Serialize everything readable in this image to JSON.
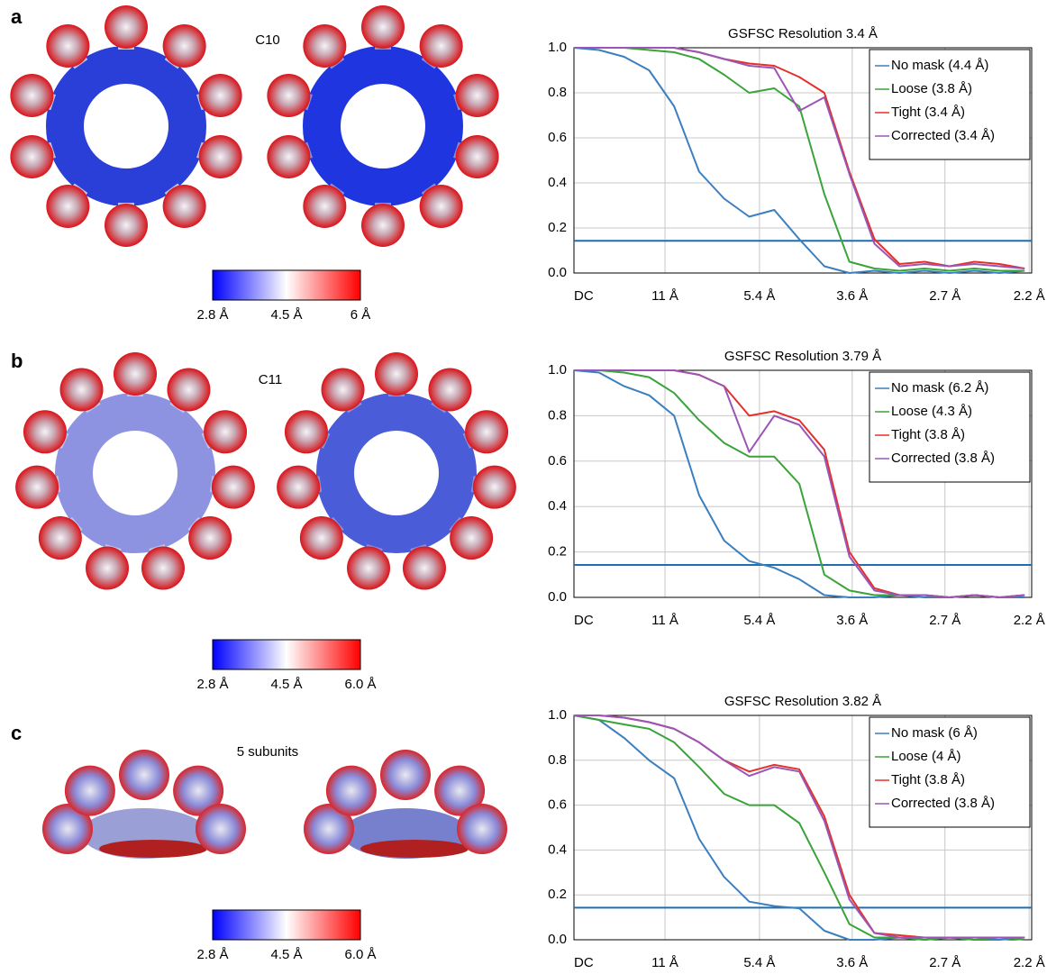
{
  "panels": [
    {
      "letter": "a",
      "label": "C10",
      "colorbar": [
        "2.8 Å",
        "4.5 Å",
        "6 Å"
      ]
    },
    {
      "letter": "b",
      "label": "C11",
      "colorbar": [
        "2.8 Å",
        "4.5 Å",
        "6.0 Å"
      ]
    },
    {
      "letter": "c",
      "label": "5 subunits",
      "colorbar": [
        "2.8 Å",
        "4.5 Å",
        "6.0 Å"
      ]
    }
  ],
  "chart_data": [
    {
      "type": "line",
      "title": "GSFSC Resolution 3.4 Å",
      "x": [
        0,
        0.025,
        0.05,
        0.075,
        0.1,
        0.125,
        0.15,
        0.175,
        0.2,
        0.225,
        0.25,
        0.275,
        0.3,
        0.325,
        0.35,
        0.375,
        0.4,
        0.425,
        0.45
      ],
      "series": [
        {
          "name": "No mask (4.4 Å)",
          "color": "#3b7fc0",
          "values": [
            1.0,
            0.99,
            0.96,
            0.9,
            0.74,
            0.45,
            0.33,
            0.25,
            0.28,
            0.15,
            0.03,
            0.0,
            0.01,
            0.0,
            0.01,
            0.0,
            0.01,
            0.0,
            0.01
          ]
        },
        {
          "name": "Loose (3.8 Å)",
          "color": "#3aa33a",
          "values": [
            1.0,
            1.0,
            1.0,
            0.99,
            0.98,
            0.95,
            0.88,
            0.8,
            0.82,
            0.74,
            0.35,
            0.05,
            0.02,
            0.01,
            0.02,
            0.01,
            0.02,
            0.01,
            0.01
          ]
        },
        {
          "name": "Tight (3.4 Å)",
          "color": "#e3312b",
          "values": [
            1.0,
            1.0,
            1.0,
            1.0,
            1.0,
            0.98,
            0.95,
            0.93,
            0.92,
            0.87,
            0.8,
            0.45,
            0.15,
            0.04,
            0.05,
            0.03,
            0.05,
            0.04,
            0.02
          ]
        },
        {
          "name": "Corrected (3.4 Å)",
          "color": "#9b55b5",
          "values": [
            1.0,
            1.0,
            1.0,
            1.0,
            1.0,
            0.98,
            0.95,
            0.92,
            0.91,
            0.72,
            0.78,
            0.44,
            0.13,
            0.03,
            0.04,
            0.03,
            0.04,
            0.03,
            0.02
          ]
        }
      ],
      "threshold": 0.143,
      "threshold_color": "#1f6fb0",
      "xlim": [
        0,
        0.457
      ],
      "ylim": [
        0,
        1
      ],
      "xticks": [
        {
          "value": 0,
          "label": "DC"
        },
        {
          "value": 0.0909,
          "label": "11 Å"
        },
        {
          "value": 0.1852,
          "label": "5.4 Å"
        },
        {
          "value": 0.2778,
          "label": "3.6 Å"
        },
        {
          "value": 0.3704,
          "label": "2.7 Å"
        },
        {
          "value": 0.4545,
          "label": "2.2 Å"
        }
      ],
      "yticks": [
        {
          "value": 0,
          "label": "0.0"
        },
        {
          "value": 0.2,
          "label": "0.2"
        },
        {
          "value": 0.4,
          "label": "0.4"
        },
        {
          "value": 0.6,
          "label": "0.6"
        },
        {
          "value": 0.8,
          "label": "0.8"
        },
        {
          "value": 1,
          "label": "1.0"
        }
      ],
      "grid": true,
      "legend": "upper right"
    },
    {
      "type": "line",
      "title": "GSFSC Resolution 3.79 Å",
      "x": [
        0,
        0.025,
        0.05,
        0.075,
        0.1,
        0.125,
        0.15,
        0.175,
        0.2,
        0.225,
        0.25,
        0.275,
        0.3,
        0.325,
        0.35,
        0.375,
        0.4,
        0.425,
        0.45
      ],
      "series": [
        {
          "name": "No mask (6.2 Å)",
          "color": "#3b7fc0",
          "values": [
            1.0,
            0.99,
            0.93,
            0.89,
            0.8,
            0.45,
            0.25,
            0.16,
            0.13,
            0.08,
            0.01,
            0.0,
            0.0,
            0.01,
            0.0,
            0.0,
            0.01,
            0.0,
            0.0
          ]
        },
        {
          "name": "Loose (4.3 Å)",
          "color": "#3aa33a",
          "values": [
            1.0,
            1.0,
            0.99,
            0.97,
            0.9,
            0.78,
            0.68,
            0.62,
            0.62,
            0.5,
            0.1,
            0.03,
            0.01,
            0.01,
            0.01,
            0.0,
            0.01,
            0.0,
            0.01
          ]
        },
        {
          "name": "Tight (3.8 Å)",
          "color": "#e3312b",
          "values": [
            1.0,
            1.0,
            1.0,
            1.0,
            1.0,
            0.98,
            0.93,
            0.8,
            0.82,
            0.78,
            0.65,
            0.2,
            0.04,
            0.01,
            0.01,
            0.0,
            0.01,
            0.0,
            0.01
          ]
        },
        {
          "name": "Corrected (3.8 Å)",
          "color": "#9b55b5",
          "values": [
            1.0,
            1.0,
            1.0,
            1.0,
            1.0,
            0.98,
            0.93,
            0.64,
            0.8,
            0.76,
            0.62,
            0.18,
            0.03,
            0.01,
            0.01,
            0.0,
            0.01,
            0.0,
            0.01
          ]
        }
      ],
      "threshold": 0.143,
      "threshold_color": "#1f6fb0",
      "xlim": [
        0,
        0.457
      ],
      "ylim": [
        0,
        1
      ],
      "xticks": [
        {
          "value": 0,
          "label": "DC"
        },
        {
          "value": 0.0909,
          "label": "11 Å"
        },
        {
          "value": 0.1852,
          "label": "5.4 Å"
        },
        {
          "value": 0.2778,
          "label": "3.6 Å"
        },
        {
          "value": 0.3704,
          "label": "2.7 Å"
        },
        {
          "value": 0.4545,
          "label": "2.2 Å"
        }
      ],
      "yticks": [
        {
          "value": 0,
          "label": "0.0"
        },
        {
          "value": 0.2,
          "label": "0.2"
        },
        {
          "value": 0.4,
          "label": "0.4"
        },
        {
          "value": 0.6,
          "label": "0.6"
        },
        {
          "value": 0.8,
          "label": "0.8"
        },
        {
          "value": 1,
          "label": "1.0"
        }
      ],
      "grid": true,
      "legend": "upper right"
    },
    {
      "type": "line",
      "title": "GSFSC Resolution 3.82 Å",
      "x": [
        0,
        0.025,
        0.05,
        0.075,
        0.1,
        0.125,
        0.15,
        0.175,
        0.2,
        0.225,
        0.25,
        0.275,
        0.3,
        0.325,
        0.35,
        0.375,
        0.4,
        0.425,
        0.45
      ],
      "series": [
        {
          "name": "No mask (6 Å)",
          "color": "#3b7fc0",
          "values": [
            1.0,
            0.98,
            0.9,
            0.8,
            0.72,
            0.45,
            0.28,
            0.17,
            0.15,
            0.14,
            0.04,
            0.0,
            0.0,
            0.01,
            0.0,
            0.01,
            0.0,
            0.0,
            0.01
          ]
        },
        {
          "name": "Loose (4 Å)",
          "color": "#3aa33a",
          "values": [
            1.0,
            0.98,
            0.96,
            0.94,
            0.88,
            0.77,
            0.65,
            0.6,
            0.6,
            0.52,
            0.3,
            0.07,
            0.01,
            0.01,
            0.0,
            0.01,
            0.0,
            0.01,
            0.0
          ]
        },
        {
          "name": "Tight (3.8 Å)",
          "color": "#e3312b",
          "values": [
            1.0,
            1.0,
            0.99,
            0.97,
            0.94,
            0.88,
            0.8,
            0.75,
            0.78,
            0.76,
            0.55,
            0.2,
            0.03,
            0.02,
            0.01,
            0.01,
            0.01,
            0.01,
            0.01
          ]
        },
        {
          "name": "Corrected (3.8 Å)",
          "color": "#9b55b5",
          "values": [
            1.0,
            1.0,
            0.99,
            0.97,
            0.94,
            0.88,
            0.8,
            0.73,
            0.77,
            0.75,
            0.53,
            0.18,
            0.03,
            0.01,
            0.01,
            0.01,
            0.01,
            0.01,
            0.01
          ]
        }
      ],
      "threshold": 0.143,
      "threshold_color": "#1f6fb0",
      "xlim": [
        0,
        0.457
      ],
      "ylim": [
        0,
        1
      ],
      "xticks": [
        {
          "value": 0,
          "label": "DC"
        },
        {
          "value": 0.0909,
          "label": "11 Å"
        },
        {
          "value": 0.1852,
          "label": "5.4 Å"
        },
        {
          "value": 0.2778,
          "label": "3.6 Å"
        },
        {
          "value": 0.3704,
          "label": "2.7 Å"
        },
        {
          "value": 0.4545,
          "label": "2.2 Å"
        }
      ],
      "yticks": [
        {
          "value": 0,
          "label": "0.0"
        },
        {
          "value": 0.2,
          "label": "0.2"
        },
        {
          "value": 0.4,
          "label": "0.4"
        },
        {
          "value": 0.6,
          "label": "0.6"
        },
        {
          "value": 0.8,
          "label": "0.8"
        },
        {
          "value": 1,
          "label": "1.0"
        }
      ],
      "grid": true,
      "legend": "upper right"
    }
  ]
}
